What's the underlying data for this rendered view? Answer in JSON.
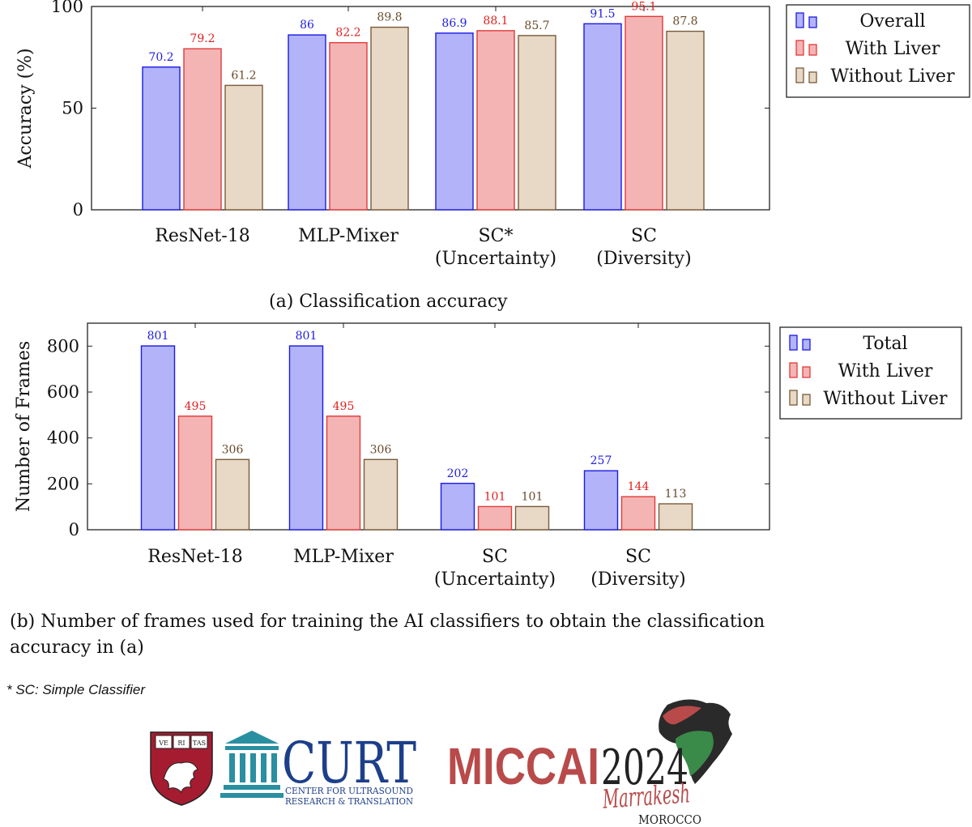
{
  "colors": {
    "overall_fill": "#b3b3fa",
    "overall_stroke": "#1a1ae6",
    "overall_label": "#2020e0",
    "liver_fill": "#f4b4b4",
    "liver_stroke": "#e23a3a",
    "liver_label": "#e02020",
    "noliver_fill": "#e8d9c6",
    "noliver_stroke": "#7a5a3a",
    "noliver_label": "#6a4a2a",
    "harvard_red": "#a51c30",
    "curt_teal": "#2a8fa0",
    "curt_navy": "#1d3f8a",
    "miccai_red": "#b94a4a"
  },
  "charts": {
    "a": {
      "caption": "(a) Classification accuracy"
    },
    "b": {
      "caption": "(b) Number of frames used for training the AI classifiers to obtain the classification accuracy in (a)"
    }
  },
  "chart_data": [
    {
      "id": "a",
      "type": "bar",
      "title": "(a) Classification accuracy",
      "xlabel": "",
      "ylabel": "Accuracy (%)",
      "ylim": [
        0,
        100
      ],
      "yticks": [
        0,
        50,
        100
      ],
      "grid": false,
      "legend_position": "outside-right",
      "categories": [
        [
          "ResNet-18"
        ],
        [
          "MLP-Mixer"
        ],
        [
          "SC*",
          "(Uncertainty)"
        ],
        [
          "SC",
          "(Diversity)"
        ]
      ],
      "series": [
        {
          "name": "Overall",
          "values": [
            70.2,
            86,
            86.9,
            91.5
          ],
          "labels": [
            "70.2",
            "86",
            "86.9",
            "91.5"
          ]
        },
        {
          "name": "With Liver",
          "values": [
            79.2,
            82.2,
            88.1,
            95.1
          ],
          "labels": [
            "79.2",
            "82.2",
            "88.1",
            "95.1"
          ]
        },
        {
          "name": "Without Liver",
          "values": [
            61.2,
            89.8,
            85.7,
            87.8
          ],
          "labels": [
            "61.2",
            "89.8",
            "85.7",
            "87.8"
          ]
        }
      ]
    },
    {
      "id": "b",
      "type": "bar",
      "title": "(b) Number of frames used for training the AI classifiers to obtain the classification accuracy in (a)",
      "xlabel": "",
      "ylabel": "Number of Frames",
      "ylim": [
        0,
        900
      ],
      "yticks": [
        0,
        200,
        400,
        600,
        800
      ],
      "grid": false,
      "legend_position": "outside-right",
      "categories": [
        [
          "ResNet-18"
        ],
        [
          "MLP-Mixer"
        ],
        [
          "SC",
          "(Uncertainty)"
        ],
        [
          "SC",
          "(Diversity)"
        ]
      ],
      "series": [
        {
          "name": "Total",
          "values": [
            801,
            801,
            202,
            257
          ],
          "labels": [
            "801",
            "801",
            "202",
            "257"
          ]
        },
        {
          "name": "With Liver",
          "values": [
            495,
            495,
            101,
            144
          ],
          "labels": [
            "495",
            "495",
            "101",
            "144"
          ]
        },
        {
          "name": "Without Liver",
          "values": [
            306,
            306,
            101,
            113
          ],
          "labels": [
            "306",
            "306",
            "101",
            "113"
          ]
        }
      ]
    }
  ],
  "footnote": "* SC: Simple Classifier",
  "logos": {
    "harvard": {
      "motto": [
        "VE",
        "RI",
        "TAS"
      ]
    },
    "curt": {
      "name": "CURT",
      "tagline_1": "Center for Ultrasound",
      "tagline_2": "Research & Translation"
    },
    "miccai": {
      "name": "MICCAI",
      "year": "2024",
      "city": "Marrakesh",
      "country": "MOROCCO"
    }
  }
}
